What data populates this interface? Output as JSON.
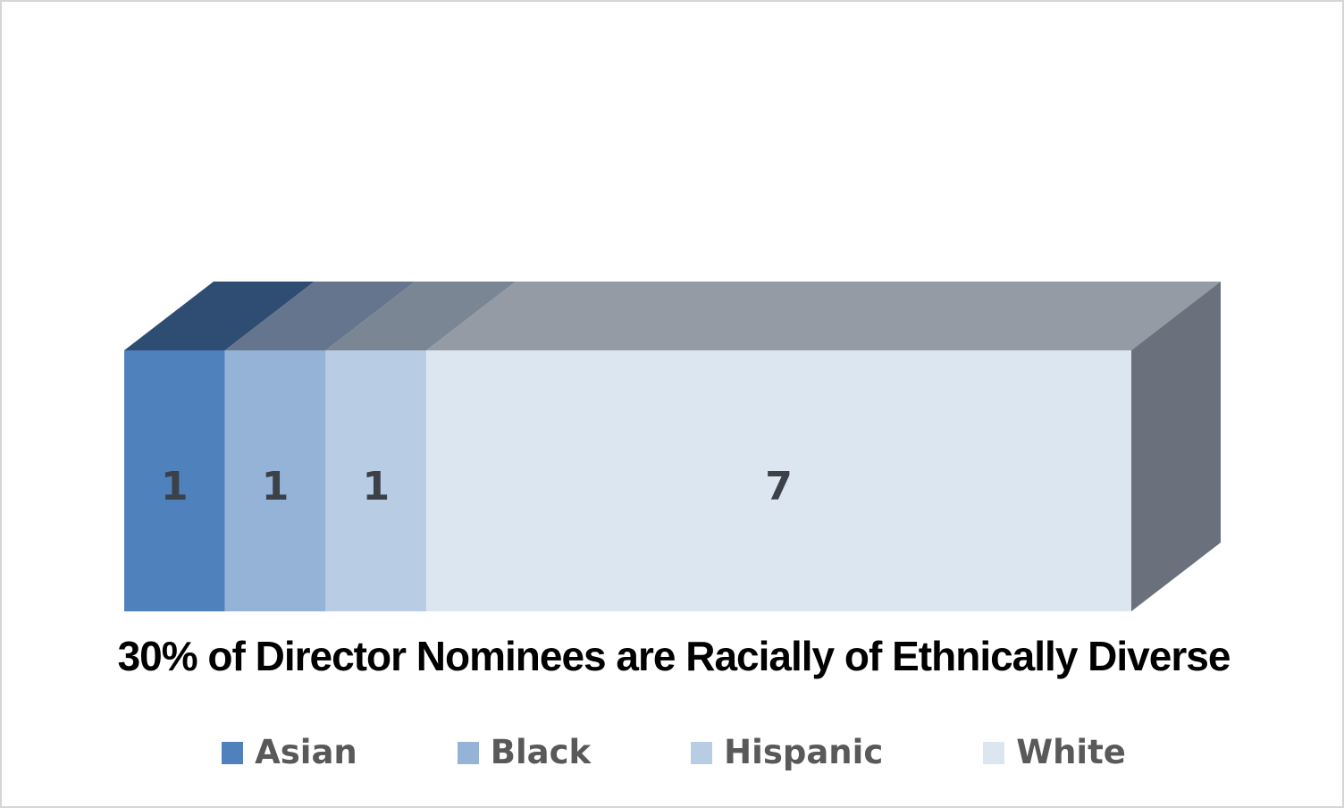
{
  "page": {
    "background": "#FFFFFF",
    "border_color": "#D6D6D6"
  },
  "chart_data": {
    "type": "bar",
    "variant": "3d-horizontal-stacked",
    "title": "30% of Director Nominees are Racially of Ethnically Diverse",
    "categories": [
      "Director Nominees"
    ],
    "series": [
      {
        "name": "Asian",
        "values": [
          1
        ]
      },
      {
        "name": "Black",
        "values": [
          1
        ]
      },
      {
        "name": "Hispanic",
        "values": [
          1
        ]
      },
      {
        "name": "White",
        "values": [
          7
        ]
      }
    ],
    "data_labels": [
      "1",
      "1",
      "1",
      "7"
    ],
    "xlim": [
      0,
      10
    ],
    "axes_visible": false,
    "grid": false,
    "legend_position": "bottom",
    "colors": {
      "front": [
        "#4F81BD",
        "#95B3D7",
        "#B8CCE4",
        "#DCE6F1"
      ],
      "top": [
        "#2F4C73",
        "#66758E",
        "#7B8694",
        "#949BA5"
      ],
      "side_end": "#6B717C",
      "label_text": "#3C4048",
      "legend_text": "#595959",
      "title_text": "#000000"
    }
  }
}
